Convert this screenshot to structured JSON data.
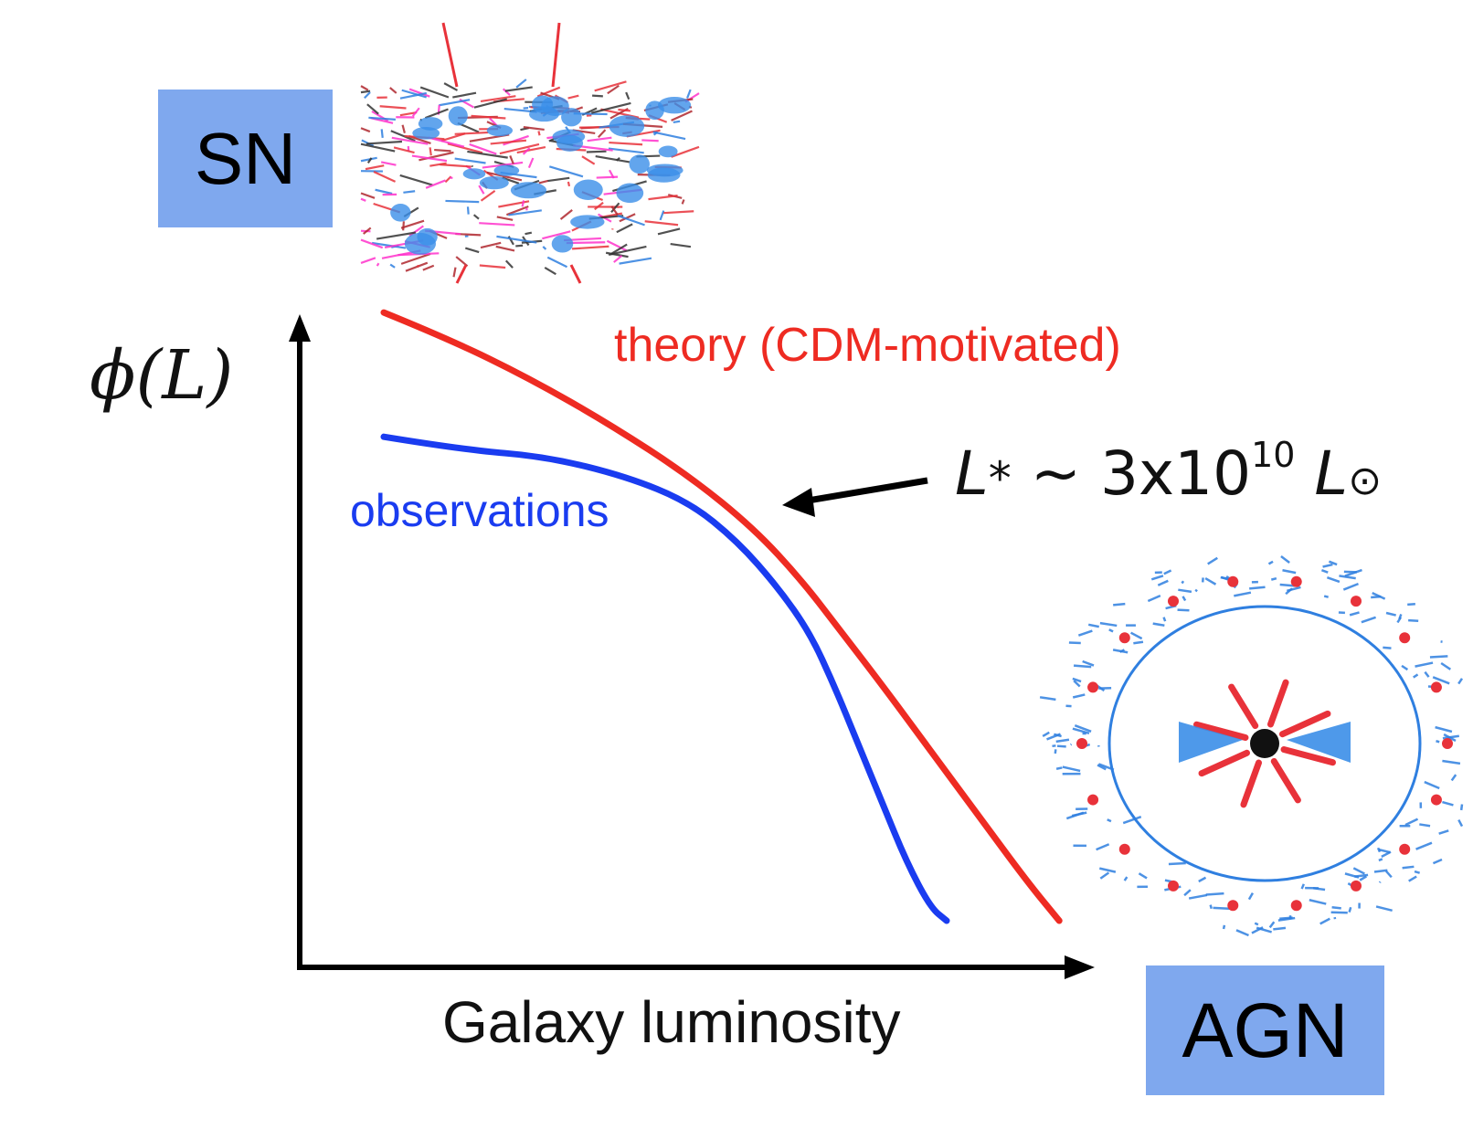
{
  "feedback": {
    "sn_label": "SN",
    "agn_label": "AGN"
  },
  "chart_data": {
    "type": "line",
    "ylabel": "ϕ(L)",
    "xlabel": "Galaxy luminosity",
    "series": [
      {
        "name": "theory (CDM-motivated)",
        "color": "#ee2b22",
        "x": [
          0.0,
          0.08,
          0.18,
          0.28,
          0.38,
          0.46,
          0.52,
          0.57,
          0.62,
          0.68,
          0.74,
          0.8,
          0.84
        ],
        "y": [
          0.93,
          0.89,
          0.83,
          0.76,
          0.68,
          0.6,
          0.52,
          0.44,
          0.36,
          0.26,
          0.16,
          0.06,
          0.0
        ]
      },
      {
        "name": "observations",
        "color": "#1a3cf0",
        "x": [
          0.0,
          0.1,
          0.2,
          0.3,
          0.38,
          0.44,
          0.49,
          0.53,
          0.56,
          0.59,
          0.62,
          0.65,
          0.68,
          0.7
        ],
        "y": [
          0.74,
          0.72,
          0.71,
          0.68,
          0.64,
          0.58,
          0.51,
          0.44,
          0.36,
          0.27,
          0.18,
          0.09,
          0.02,
          0.0
        ]
      }
    ],
    "annotations": [
      {
        "text_prefix": "L",
        "text_sub": "*",
        "text_mid": " ~ 3x10",
        "text_sup": "10",
        "text_end": " L",
        "text_sun": "⊙",
        "points_to_x": 0.52
      }
    ],
    "arrow_color": "#000000"
  }
}
